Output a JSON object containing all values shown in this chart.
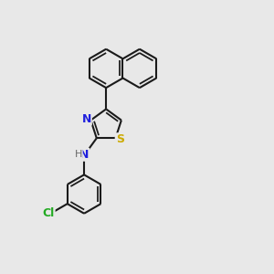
{
  "bg_color": "#e8e8e8",
  "bond_color": "#1a1a1a",
  "bond_width": 1.5,
  "N_color": "#2020dd",
  "S_color": "#ccaa00",
  "Cl_color": "#22aa22",
  "NH_color": "#666666",
  "font_size": 9.0,
  "dpi": 100,
  "figsize": [
    3.0,
    3.0
  ],
  "xlim": [
    0.0,
    1.0
  ],
  "ylim": [
    0.0,
    1.0
  ]
}
